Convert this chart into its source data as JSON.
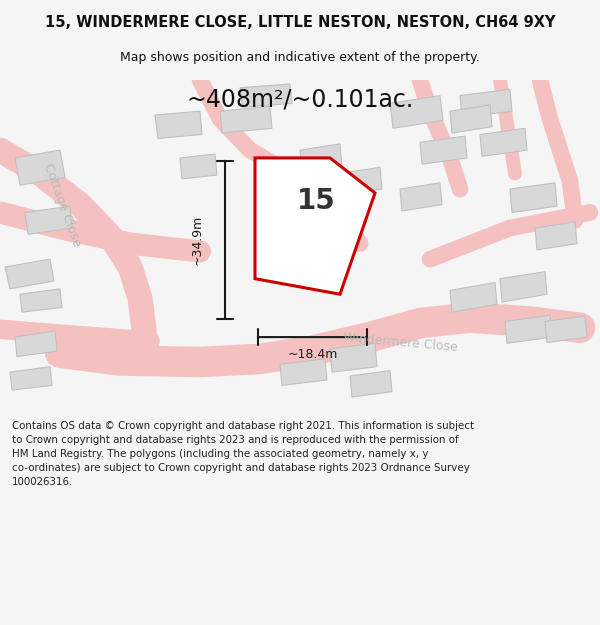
{
  "title_line1": "15, WINDERMERE CLOSE, LITTLE NESTON, NESTON, CH64 9XY",
  "title_line2": "Map shows position and indicative extent of the property.",
  "area_text": "~408m²/~0.101ac.",
  "number_label": "15",
  "dim_height": "~34.9m",
  "dim_width": "~18.4m",
  "footer_lines": [
    "Contains OS data © Crown copyright and database right 2021. This information is subject",
    "to Crown copyright and database rights 2023 and is reproduced with the permission of",
    "HM Land Registry. The polygons (including the associated geometry, namely x, y",
    "co-ordinates) are subject to Crown copyright and database rights 2023 Ordnance Survey",
    "100026316."
  ],
  "bg_color": "#f5f5f5",
  "map_bg": "#ffffff",
  "plot_fill": "#ffffff",
  "plot_edge": "#cc0000",
  "road_color": "#f5c0c0",
  "building_color": "#d8d8d8",
  "building_edge": "#c0c0c0",
  "dim_color": "#1a1a1a"
}
